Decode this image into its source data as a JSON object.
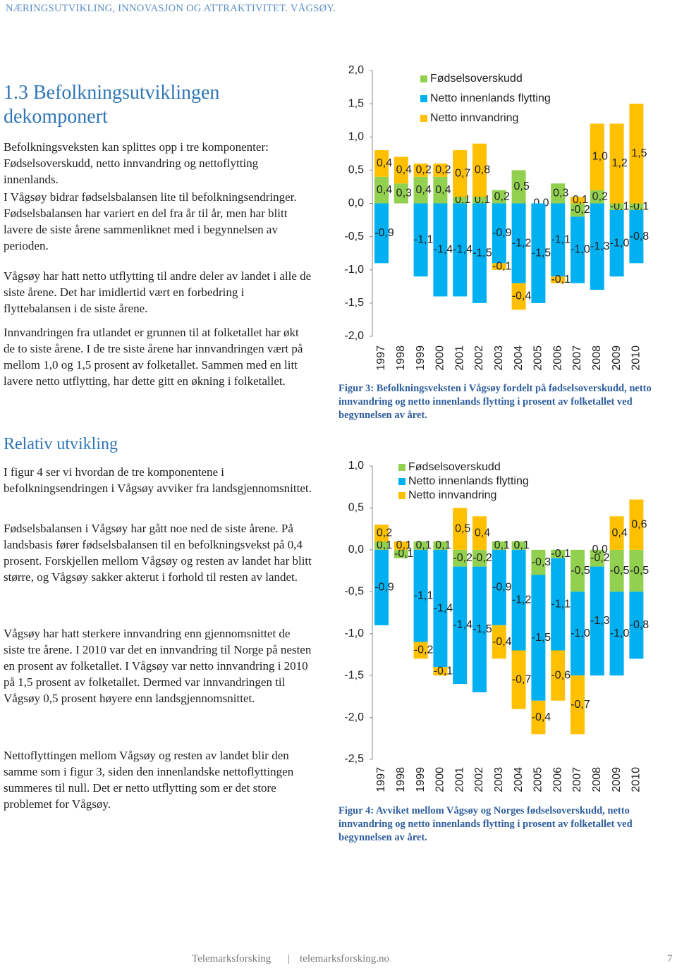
{
  "header": "NÆRINGSUTVIKLING, INNOVASJON OG ATTRAKTIVITET. VÅGSØY.",
  "section": {
    "title": "1.3 Befolkningsutviklingen dekomponert",
    "paragraphs": [
      "Befolkningsveksten kan splittes opp i tre komponenter: Fødselsoverskudd, netto innvandring og nettoflytting innenlands.",
      "I Vågsøy bidrar fødselsbalansen lite til befolkningsendringer. Fødselsbalansen har variert en del fra år til år, men har blitt lavere de siste årene sammenliknet med i begynnelsen av perioden.",
      "Vågsøy har hatt netto utflytting til andre deler av landet i alle de siste årene. Det har imidlertid vært en forbedring i flyttebalansen i de siste årene.",
      "Innvandringen fra utlandet er grunnen til at folketallet har økt de to siste årene. I de tre siste årene har innvandringen vært på mellom 1,0 og 1,5 prosent av folketallet. Sammen med en litt lavere netto utflytting, har dette gitt en økning i folketallet."
    ]
  },
  "section2": {
    "title": "Relativ utvikling",
    "paragraphs": [
      "I figur 4 ser vi hvordan de tre komponentene i befolkningsendringen i Vågsøy avviker fra landsgjennomsnittet.",
      "Fødselsbalansen i Vågsøy har gått noe ned de siste årene. På landsbasis fører fødselsbalansen til en befolkningsvekst på 0,4 prosent. Forskjellen mellom Vågsøy og resten av landet har blitt større, og Vågsøy sakker akterut i forhold til resten av landet.",
      "Vågsøy har hatt sterkere innvandring enn gjennomsnittet de siste tre årene. I 2010 var det en innvandring til Norge på nesten en prosent av folketallet. I Vågsøy var netto innvandring i 2010 på 1,5 prosent av folketallet. Dermed var innvandringen til Vågsøy 0,5 prosent høyere enn landsgjennomsnittet.",
      "Nettoflyttingen mellom Vågsøy og resten av landet blir den samme som i figur 3, siden den innenlandske nettoflyttingen summeres til null. Det er netto utflytting som er det store problemet for Vågsøy."
    ]
  },
  "footer": {
    "left": "Telemarksforsking",
    "separator": "|",
    "right": "telemarksforsking.no",
    "page": "7"
  },
  "chart_data": [
    {
      "type": "stacked-bar",
      "caption": "Figur 3: Befolkningsveksten i Vågsøy fordelt på fødselsoverskudd, netto innvandring og netto innenlands flytting i prosent av folketallet ved begynnelsen av året.",
      "categories": [
        "1997",
        "1998",
        "1999",
        "2000",
        "2001",
        "2002",
        "2003",
        "2004",
        "2005",
        "2006",
        "2007",
        "2008",
        "2009",
        "2010"
      ],
      "ylim": [
        -2,
        2
      ],
      "yticks": [
        {
          "value": 2,
          "label": "2,0"
        },
        {
          "value": 1.5,
          "label": "1,5"
        },
        {
          "value": 1,
          "label": "1,0"
        },
        {
          "value": 0.5,
          "label": "0,5"
        },
        {
          "value": 0,
          "label": "0,0"
        },
        {
          "value": -0.5,
          "label": "-0,5"
        },
        {
          "value": -1,
          "label": "-1,0"
        },
        {
          "value": -1.5,
          "label": "-1,5"
        },
        {
          "value": -2,
          "label": "-2,0"
        }
      ],
      "series": [
        {
          "name": "Fødselsoverskudd",
          "color": "#92d050",
          "values": [
            0.4,
            0.3,
            0.4,
            0.4,
            0.1,
            0.1,
            0.2,
            0.5,
            0.0,
            0.3,
            -0.2,
            0.2,
            -0.1,
            -0.1
          ],
          "value_labels": [
            "0,4",
            "0,3",
            "0,4",
            "0,4",
            "0,1",
            "0,1",
            "0,2",
            "0,5",
            "0,0",
            "0,3",
            "-0,2",
            "0,2",
            "-0,1",
            "-0,1"
          ]
        },
        {
          "name": "Netto innenlands flytting",
          "color": "#00b0f0",
          "values": [
            -0.9,
            null,
            -1.1,
            -1.4,
            -1.4,
            -1.5,
            -0.9,
            -1.2,
            -1.5,
            -1.1,
            -1.0,
            -1.3,
            -1.0,
            -0.8
          ],
          "value_labels": [
            "-0,9",
            null,
            "-1,1",
            "-1,4",
            "-1,4",
            "-1,5",
            "-0,9",
            "-1,2",
            "-1,5",
            "-1,1",
            "-1,0",
            "-1,3",
            "-1,0",
            "-0,8"
          ]
        },
        {
          "name": "Netto innvandring",
          "color": "#ffc000",
          "values": [
            0.4,
            0.4,
            0.2,
            0.2,
            0.7,
            0.8,
            -0.1,
            -0.4,
            null,
            -0.1,
            0.1,
            1.0,
            1.2,
            1.5
          ],
          "value_labels": [
            "0,4",
            "0,4",
            "0,2",
            "0,2",
            "0,7",
            "0,8",
            "-0,1",
            "-0,4",
            null,
            "-0,1",
            "0,1",
            "1,0",
            "1,2",
            "1,5"
          ]
        }
      ]
    },
    {
      "type": "stacked-bar",
      "caption": "Figur 4: Avviket mellom Vågsøy og Norges fødselsoverskudd, netto innvandring og netto innenlands flytting i prosent av folketallet ved begynnelsen av året.",
      "categories": [
        "1997",
        "1998",
        "1999",
        "2000",
        "2001",
        "2002",
        "2003",
        "2004",
        "2005",
        "2006",
        "2007",
        "2008",
        "2009",
        "2010"
      ],
      "ylim": [
        -2.5,
        1
      ],
      "yticks": [
        {
          "value": 1,
          "label": "1,0"
        },
        {
          "value": 0.5,
          "label": "0,5"
        },
        {
          "value": 0,
          "label": "0,0"
        },
        {
          "value": -0.5,
          "label": "-0,5"
        },
        {
          "value": -1,
          "label": "-1,0"
        },
        {
          "value": -1.5,
          "label": "-1,5"
        },
        {
          "value": -2,
          "label": "-2,0"
        },
        {
          "value": -2.5,
          "label": "-2,5"
        }
      ],
      "series": [
        {
          "name": "Fødselsoverskudd",
          "color": "#92d050",
          "values": [
            0.1,
            -0.1,
            0.1,
            0.1,
            -0.2,
            -0.2,
            0.1,
            0.1,
            -0.3,
            -0.1,
            -0.5,
            -0.2,
            -0.5,
            -0.5
          ],
          "value_labels": [
            "0,1",
            "-0,1",
            "0,1",
            "0,1",
            "-0,2",
            "-0,2",
            "0,1",
            "0,1",
            "-0,3",
            "-0,1",
            "-0,5",
            "-0,2",
            "-0,5",
            "-0,5"
          ]
        },
        {
          "name": "Netto innenlands flytting",
          "color": "#00b0f0",
          "values": [
            -0.9,
            null,
            -1.1,
            -1.4,
            -1.4,
            -1.5,
            -0.9,
            -1.2,
            -1.5,
            -1.1,
            -1.0,
            -1.3,
            -1.0,
            -0.8
          ],
          "value_labels": [
            "-0,9",
            null,
            "-1,1",
            "-1,4",
            "-1,4",
            "-1,5",
            "-0,9",
            "-1,2",
            "-1,5",
            "-1,1",
            "-1,0",
            "-1,3",
            "-1,0",
            "-0,8"
          ]
        },
        {
          "name": "Netto innvandring",
          "color": "#ffc000",
          "values": [
            0.2,
            0.1,
            -0.2,
            -0.1,
            0.5,
            0.4,
            -0.4,
            -0.7,
            -0.4,
            -0.6,
            -0.7,
            0.0,
            0.4,
            0.6
          ],
          "value_labels": [
            "0,2",
            "0,1",
            "-0,2",
            "-0,1",
            "0,5",
            "0,4",
            "-0,4",
            "-0,7",
            "-0,4",
            "-0,6",
            "-0,7",
            "0,0",
            "0,4",
            "0,6"
          ]
        }
      ]
    }
  ]
}
